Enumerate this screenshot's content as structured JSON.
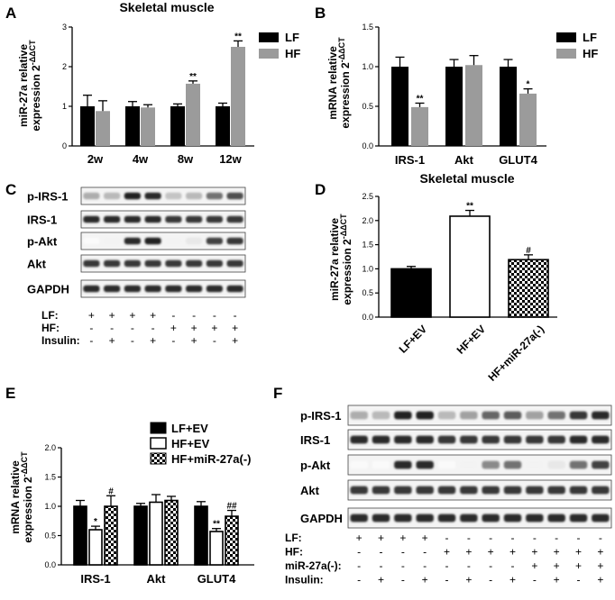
{
  "panels": {
    "A": {
      "letter": "A",
      "title": "Skeletal muscle",
      "ylabel_main": "miR-27a relative",
      "ylabel_expr": "expression 2",
      "ylabel_sup": "-ΔΔCT",
      "yticks": [
        "0",
        "1",
        "2",
        "3"
      ],
      "legend": [
        "LF",
        "HF"
      ]
    },
    "B": {
      "letter": "B",
      "ylabel_main": "mRNA relative",
      "ylabel_expr": "expression 2",
      "ylabel_sup": "-ΔΔCT",
      "yticks": [
        "0.0",
        "0.5",
        "1.0",
        "1.5"
      ],
      "legend": [
        "LF",
        "HF"
      ]
    },
    "C": {
      "letter": "C",
      "rows": [
        "p-IRS-1",
        "IRS-1",
        "p-Akt",
        "Akt",
        "GAPDH"
      ],
      "cond_labels": [
        "LF:",
        "HF:",
        "Insulin:"
      ],
      "cond_values": [
        [
          "+",
          "+",
          "+",
          "+",
          "-",
          "-",
          "-",
          "-"
        ],
        [
          "-",
          "-",
          "-",
          "-",
          "+",
          "+",
          "+",
          "+"
        ],
        [
          "-",
          "+",
          "-",
          "+",
          "-",
          "+",
          "-",
          "+"
        ]
      ]
    },
    "D": {
      "letter": "D",
      "title": "Skeletal muscle",
      "ylabel_main": "miR-27a relative",
      "ylabel_expr": "expression 2",
      "ylabel_sup": "-ΔΔCT",
      "yticks": [
        "0.0",
        "0.5",
        "1.0",
        "1.5",
        "2.0",
        "2.5"
      ]
    },
    "E": {
      "letter": "E",
      "ylabel_main": "mRNA relative",
      "ylabel_expr": "expression 2",
      "ylabel_sup": "-ΔΔCT",
      "yticks": [
        "0.0",
        "0.5",
        "1.0",
        "1.5",
        "2.0"
      ],
      "legend": [
        "LF+EV",
        "HF+EV",
        "HF+miR-27a(-)"
      ]
    },
    "F": {
      "letter": "F",
      "rows": [
        "p-IRS-1",
        "IRS-1",
        "p-Akt",
        "Akt",
        "GAPDH"
      ],
      "cond_labels": [
        "LF:",
        "HF:",
        "miR-27a(-):",
        "Insulin:"
      ],
      "cond_values": [
        [
          "+",
          "+",
          "+",
          "+",
          "-",
          "-",
          "-",
          "-",
          "-",
          "-",
          "-",
          "-"
        ],
        [
          "-",
          "-",
          "-",
          "-",
          "+",
          "+",
          "+",
          "+",
          "+",
          "+",
          "+",
          "+"
        ],
        [
          "-",
          "-",
          "-",
          "-",
          "-",
          "-",
          "-",
          "-",
          "+",
          "+",
          "+",
          "+"
        ],
        [
          "-",
          "+",
          "-",
          "+",
          "-",
          "+",
          "-",
          "+",
          "-",
          "+",
          "-",
          "+"
        ]
      ]
    }
  },
  "chart_data": [
    {
      "panel": "A",
      "type": "bar",
      "title": "Skeletal muscle",
      "ylabel": "miR-27a relative expression 2-ΔΔCT",
      "ylim": [
        0,
        3
      ],
      "categories": [
        "2w",
        "4w",
        "8w",
        "12w"
      ],
      "series": [
        {
          "name": "LF",
          "color": "#000000",
          "values": [
            1.0,
            1.0,
            1.0,
            1.0
          ],
          "errors": [
            0.28,
            0.12,
            0.06,
            0.08
          ],
          "sig": [
            "",
            "",
            "",
            ""
          ]
        },
        {
          "name": "HF",
          "color": "#9b9b9b",
          "values": [
            0.88,
            0.97,
            1.57,
            2.5
          ],
          "errors": [
            0.26,
            0.07,
            0.07,
            0.15
          ],
          "sig": [
            "",
            "",
            "**",
            "**"
          ]
        }
      ]
    },
    {
      "panel": "B",
      "type": "bar",
      "ylabel": "mRNA relative expression 2-ΔΔCT",
      "ylim": [
        0,
        1.5
      ],
      "categories": [
        "IRS-1",
        "Akt",
        "GLUT4"
      ],
      "series": [
        {
          "name": "LF",
          "color": "#000000",
          "values": [
            1.0,
            1.0,
            1.0
          ],
          "errors": [
            0.12,
            0.09,
            0.09
          ],
          "sig": [
            "",
            "",
            ""
          ]
        },
        {
          "name": "HF",
          "color": "#9b9b9b",
          "values": [
            0.49,
            1.02,
            0.66
          ],
          "errors": [
            0.05,
            0.12,
            0.06
          ],
          "sig": [
            "**",
            "",
            "*"
          ]
        }
      ]
    },
    {
      "panel": "D",
      "type": "bar",
      "title": "Skeletal muscle",
      "ylabel": "miR-27a relative expression 2-ΔΔCT",
      "ylim": [
        0,
        2.5
      ],
      "categories": [
        "LF+EV",
        "HF+EV",
        "HF+miR-27a(-)"
      ],
      "values": [
        1.0,
        2.09,
        1.19
      ],
      "errors": [
        0.05,
        0.12,
        0.1
      ],
      "fills": [
        "black",
        "white",
        "check"
      ],
      "sig": [
        "",
        "**",
        "#"
      ]
    },
    {
      "panel": "E",
      "type": "bar",
      "ylabel": "mRNA relative expression 2-ΔΔCT",
      "ylim": [
        0,
        2.0
      ],
      "categories": [
        "IRS-1",
        "Akt",
        "GLUT4"
      ],
      "series": [
        {
          "name": "LF+EV",
          "fill": "black",
          "values": [
            1.0,
            1.0,
            1.0
          ],
          "errors": [
            0.1,
            0.05,
            0.08
          ],
          "sig": [
            "",
            "",
            ""
          ]
        },
        {
          "name": "HF+EV",
          "fill": "white",
          "values": [
            0.6,
            1.07,
            0.57
          ],
          "errors": [
            0.06,
            0.13,
            0.05
          ],
          "sig": [
            "*",
            "",
            "**"
          ]
        },
        {
          "name": "HF+miR-27a(-)",
          "fill": "check",
          "values": [
            1.0,
            1.1,
            0.83
          ],
          "errors": [
            0.18,
            0.07,
            0.1
          ],
          "sig": [
            "#",
            "",
            "##"
          ]
        }
      ]
    }
  ],
  "blots": {
    "C": [
      [
        0.35,
        0.3,
        0.95,
        0.9,
        0.25,
        0.3,
        0.6,
        0.75
      ],
      [
        0.9,
        0.9,
        0.9,
        0.9,
        0.85,
        0.85,
        0.85,
        0.85
      ],
      [
        0.02,
        0.05,
        0.9,
        0.95,
        0.05,
        0.1,
        0.8,
        0.85
      ],
      [
        0.85,
        0.85,
        0.85,
        0.85,
        0.85,
        0.85,
        0.85,
        0.85
      ],
      [
        0.9,
        0.9,
        0.9,
        0.9,
        0.9,
        0.9,
        0.9,
        0.9
      ]
    ],
    "F": [
      [
        0.35,
        0.3,
        0.95,
        0.95,
        0.3,
        0.4,
        0.65,
        0.7,
        0.4,
        0.6,
        0.85,
        0.9
      ],
      [
        0.9,
        0.9,
        0.9,
        0.9,
        0.85,
        0.85,
        0.85,
        0.85,
        0.85,
        0.85,
        0.9,
        0.9
      ],
      [
        0.02,
        0.02,
        0.9,
        0.9,
        0.02,
        0.05,
        0.5,
        0.6,
        0.05,
        0.1,
        0.6,
        0.8
      ],
      [
        0.85,
        0.85,
        0.85,
        0.85,
        0.85,
        0.85,
        0.85,
        0.85,
        0.85,
        0.85,
        0.85,
        0.85
      ],
      [
        0.9,
        0.9,
        0.9,
        0.9,
        0.9,
        0.9,
        0.9,
        0.9,
        0.9,
        0.9,
        0.9,
        0.9
      ]
    ]
  }
}
